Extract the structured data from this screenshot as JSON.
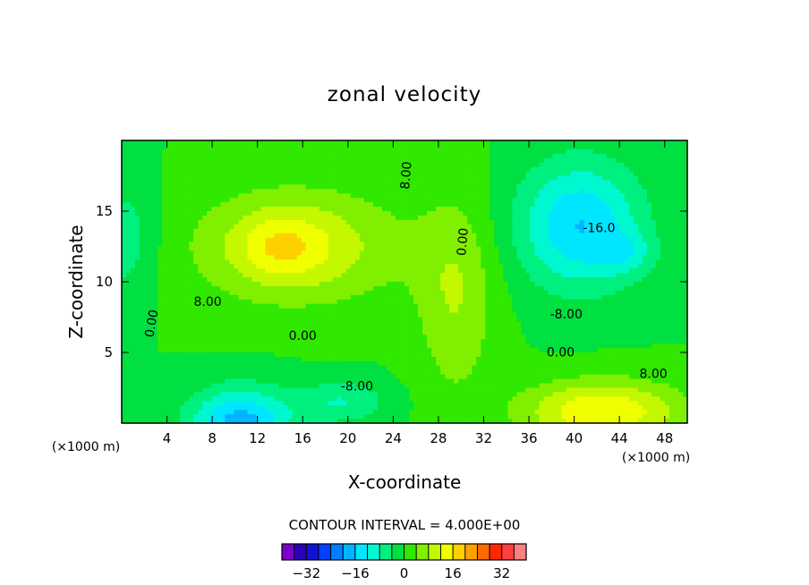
{
  "chart_data": {
    "type": "heatmap",
    "title": "zonal velocity",
    "xlabel": "X-coordinate",
    "ylabel": "Z-coordinate",
    "x_units_left": "(×1000 m)",
    "x_units_right": "(×1000 m)",
    "xlim": [
      0,
      50
    ],
    "ylim": [
      0,
      20
    ],
    "x_ticks": [
      "4",
      "8",
      "12",
      "16",
      "20",
      "24",
      "28",
      "32",
      "36",
      "40",
      "44",
      "48"
    ],
    "x_tick_values": [
      4,
      8,
      12,
      16,
      20,
      24,
      28,
      32,
      36,
      40,
      44,
      48
    ],
    "y_ticks": [
      "5",
      "10",
      "15"
    ],
    "y_tick_values": [
      5,
      10,
      15
    ],
    "contour_interval_text": "CONTOUR INTERVAL = 4.000E+00",
    "contour_interval": 4,
    "contour_labels": [
      {
        "text": "8.00",
        "x": 25.5,
        "y": 17.5,
        "rot": -85
      },
      {
        "text": "0.00",
        "x": 30.5,
        "y": 12.8,
        "rot": -85
      },
      {
        "text": "-16.0",
        "x": 42.2,
        "y": 13.5,
        "rot": 0
      },
      {
        "text": "8.00",
        "x": 7.6,
        "y": 8.3,
        "rot": 0
      },
      {
        "text": "-8.00",
        "x": 39.3,
        "y": 7.4,
        "rot": 0
      },
      {
        "text": "0.00",
        "x": 3.0,
        "y": 7.0,
        "rot": -80
      },
      {
        "text": "0.00",
        "x": 16.0,
        "y": 5.9,
        "rot": 0
      },
      {
        "text": "0.00",
        "x": 38.8,
        "y": 4.7,
        "rot": 0
      },
      {
        "text": "8.00",
        "x": 47.0,
        "y": 3.2,
        "rot": 0
      },
      {
        "text": "-8.00",
        "x": 20.8,
        "y": 2.3,
        "rot": 0
      }
    ],
    "colorbar": {
      "levels": [
        -40,
        -36,
        -32,
        -28,
        -24,
        -20,
        -16,
        -12,
        -8,
        -4,
        0,
        4,
        8,
        12,
        16,
        20,
        24,
        28,
        32,
        36,
        40
      ],
      "colors": [
        "#7b00c8",
        "#2a00b8",
        "#1010d8",
        "#0040ff",
        "#0080ff",
        "#00b4ff",
        "#00e6ff",
        "#00f8d0",
        "#00f080",
        "#00e040",
        "#30e800",
        "#80f000",
        "#c4f800",
        "#f0ff00",
        "#ffd000",
        "#ffa000",
        "#ff6a00",
        "#ff2800",
        "#ff4040",
        "#ff8080"
      ],
      "tick_labels": [
        "−32",
        "−16",
        "0",
        "16",
        "32"
      ],
      "tick_values": [
        -32,
        -16,
        0,
        16,
        32
      ]
    },
    "field_features": [
      {
        "desc": "background",
        "value": 0
      },
      {
        "x": 15.5,
        "y": 12.5,
        "sx": 9.0,
        "sy": 4.0,
        "amp": 12
      },
      {
        "x": 14.0,
        "y": 12.5,
        "sx": 3.5,
        "sy": 2.2,
        "amp": 6
      },
      {
        "x": 40.5,
        "y": 14.0,
        "sx": 5.5,
        "sy": 4.5,
        "amp": -16
      },
      {
        "x": 44.5,
        "y": 12.0,
        "sx": 2.5,
        "sy": 1.5,
        "amp": -6
      },
      {
        "x": 10.5,
        "y": 0.0,
        "sx": 4.5,
        "sy": 2.5,
        "amp": -18
      },
      {
        "x": 19.5,
        "y": 1.5,
        "sx": 4.0,
        "sy": 1.5,
        "amp": -8
      },
      {
        "x": 42.5,
        "y": 0.8,
        "sx": 7.0,
        "sy": 2.2,
        "amp": 16
      },
      {
        "x": 0.0,
        "y": 13.0,
        "sx": 3.0,
        "sy": 4.0,
        "amp": -7
      },
      {
        "x": 29.5,
        "y": 9.0,
        "sx": 3.5,
        "sy": 7.0,
        "amp": 8
      }
    ]
  }
}
